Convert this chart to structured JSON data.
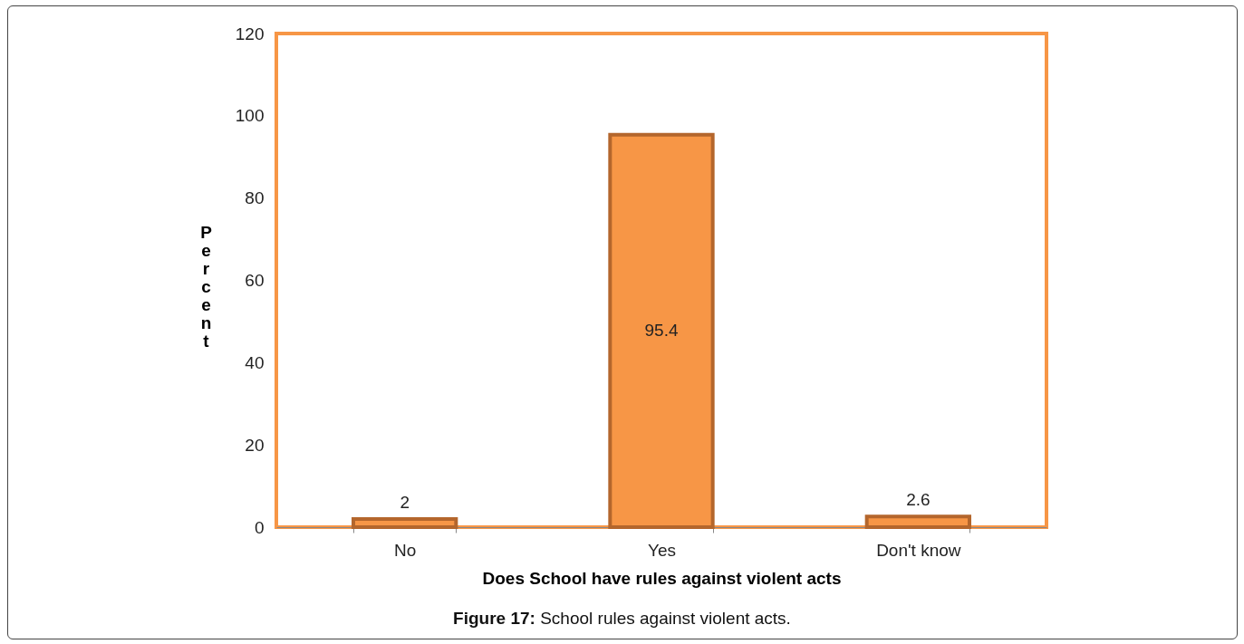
{
  "chart_data": {
    "type": "bar",
    "categories": [
      "No",
      "Yes",
      "Don't know"
    ],
    "values": [
      2,
      95.4,
      2.6
    ],
    "color": "#f79646",
    "data_labels": true,
    "xlabel": "Does School have rules against violent acts",
    "ylabel": "Percent",
    "ylim": [
      0,
      120
    ],
    "yticks": [
      0,
      20,
      40,
      60,
      80,
      100,
      120
    ],
    "grid": false,
    "annotations": [
      "Figure 17: School rules against violent acts."
    ]
  }
}
